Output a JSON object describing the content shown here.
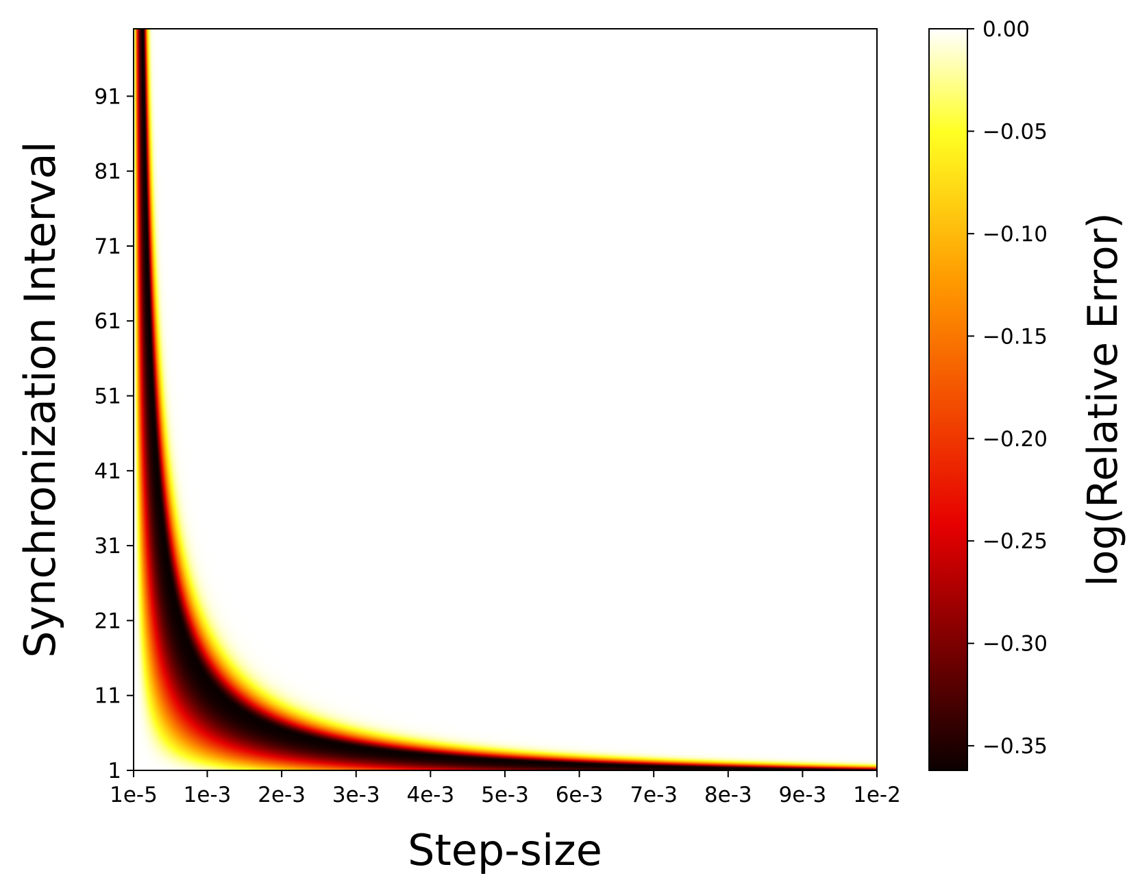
{
  "chart_data": {
    "type": "heatmap",
    "xlabel": "Step-size",
    "ylabel": "Synchronization Interval",
    "x_ticks": [
      "1e-5",
      "1e-3",
      "2e-3",
      "3e-3",
      "4e-3",
      "5e-3",
      "6e-3",
      "7e-3",
      "8e-3",
      "9e-3",
      "1e-2"
    ],
    "x_tick_values": [
      1e-05,
      0.001,
      0.002,
      0.003,
      0.004,
      0.005,
      0.006,
      0.007,
      0.008,
      0.009,
      0.01
    ],
    "y_ticks": [
      "1",
      "11",
      "21",
      "31",
      "41",
      "51",
      "61",
      "71",
      "81",
      "91"
    ],
    "y_tick_values": [
      1,
      11,
      21,
      31,
      41,
      51,
      61,
      71,
      81,
      91
    ],
    "xlim": [
      1e-05,
      0.01
    ],
    "ylim": [
      1,
      100
    ],
    "colormap": "hot",
    "colorbar": {
      "label": "log(Relative Error)",
      "ticks": [
        "0.00",
        "−0.05",
        "−0.10",
        "−0.15",
        "−0.20",
        "−0.25",
        "−0.30",
        "−0.35"
      ],
      "tick_values": [
        0.0,
        -0.05,
        -0.1,
        -0.15,
        -0.2,
        -0.25,
        -0.3,
        -0.35
      ],
      "range": [
        -0.362,
        0.0
      ],
      "colors": [
        "#0b0000",
        "#e60000",
        "#ff9a00",
        "#ffff22",
        "#ffffff"
      ]
    },
    "minimum_curve": {
      "description": "step_size * interval ≈ constant",
      "points": [
        {
          "x": 0.0001,
          "y": 100
        },
        {
          "x": 0.0003,
          "y": 40
        },
        {
          "x": 0.001,
          "y": 13
        },
        {
          "x": 0.002,
          "y": 7
        },
        {
          "x": 0.005,
          "y": 3.5
        },
        {
          "x": 0.01,
          "y": 2
        }
      ]
    },
    "grid": false
  }
}
